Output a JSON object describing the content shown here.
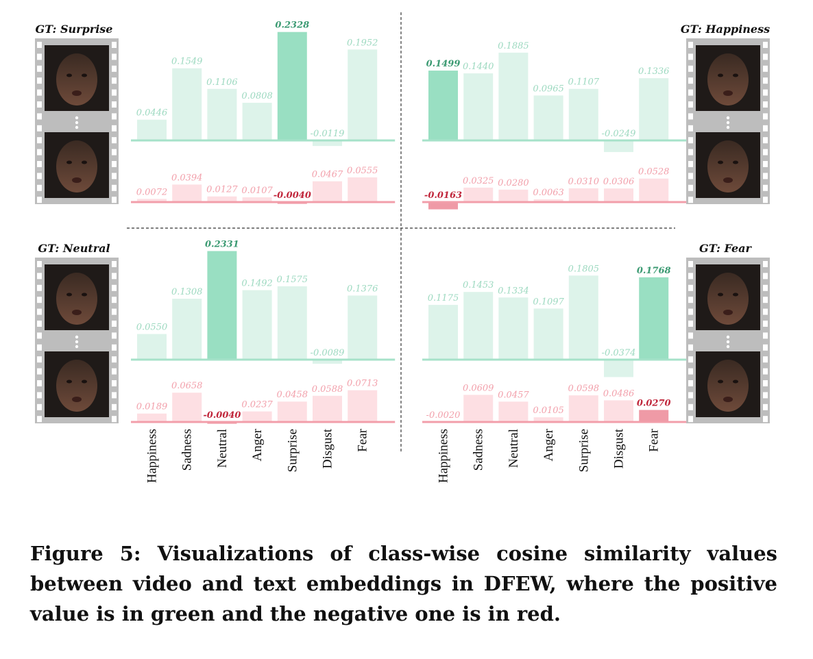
{
  "categories": [
    "Happiness",
    "Sadness",
    "Neutral",
    "Anger",
    "Surprise",
    "Disgust",
    "Fear"
  ],
  "colors": {
    "green_bar": "#ddf3ea",
    "green_highlight": "#99dfc2",
    "green_line": "#a6e2c9",
    "green_text": "#9dd9c0",
    "green_text_highlight": "#3b9a72",
    "red_bar": "#fddfe3",
    "red_highlight": "#ef9aa6",
    "red_line": "#f29eaa",
    "red_text": "#f2a0ab",
    "red_text_highlight": "#c0263b",
    "frame": "#bdbdbd",
    "divider": "#333333"
  },
  "panels": [
    {
      "gt_label": "GT: Surprise",
      "face_icon": "surprise-face-thumbnail",
      "frames": 2
    },
    {
      "gt_label": "GT: Happiness",
      "face_icon": "happiness-face-thumbnail",
      "frames": 2
    },
    {
      "gt_label": "GT: Neutral",
      "face_icon": "neutral-face-thumbnail",
      "frames": 2
    },
    {
      "gt_label": "GT: Fear",
      "face_icon": "fear-face-thumbnail",
      "frames": 2
    }
  ],
  "chart_data": [
    {
      "type": "bar",
      "title": "GT: Surprise",
      "categories": [
        "Happiness",
        "Sadness",
        "Neutral",
        "Anger",
        "Surprise",
        "Disgust",
        "Fear"
      ],
      "series": [
        {
          "values": [
            0.0446,
            0.1549,
            0.1106,
            0.0808,
            0.2328,
            -0.0119,
            0.1952
          ],
          "labels": [
            "0.0446",
            "0.1549",
            "0.1106",
            "0.0808",
            "0.2328",
            "-0.0119",
            "0.1952"
          ],
          "highlight": 4,
          "color": "green"
        },
        {
          "values": [
            0.0072,
            0.0394,
            0.0127,
            0.0107,
            -0.004,
            0.0467,
            0.0555
          ],
          "labels": [
            "0.0072",
            "0.0394",
            "0.0127",
            "0.0107",
            "-0.0040",
            "0.0467",
            "0.0555"
          ],
          "highlight": 4,
          "color": "red"
        }
      ]
    },
    {
      "type": "bar",
      "title": "GT: Happiness",
      "categories": [
        "Happiness",
        "Sadness",
        "Neutral",
        "Anger",
        "Surprise",
        "Disgust",
        "Fear"
      ],
      "series": [
        {
          "values": [
            0.1499,
            0.144,
            0.1885,
            0.0965,
            0.1107,
            -0.0249,
            0.1336
          ],
          "labels": [
            "0.1499",
            "0.1440",
            "0.1885",
            "0.0965",
            "0.1107",
            "-0.0249",
            "0.1336"
          ],
          "highlight": 0,
          "color": "green"
        },
        {
          "values": [
            -0.0163,
            0.0325,
            0.028,
            0.0063,
            0.031,
            0.0306,
            0.0528
          ],
          "labels": [
            "-0.0163",
            "0.0325",
            "0.0280",
            "0.0063",
            "0.0310",
            "0.0306",
            "0.0528"
          ],
          "highlight": 0,
          "color": "red"
        }
      ]
    },
    {
      "type": "bar",
      "title": "GT: Neutral",
      "categories": [
        "Happiness",
        "Sadness",
        "Neutral",
        "Anger",
        "Surprise",
        "Disgust",
        "Fear"
      ],
      "series": [
        {
          "values": [
            0.055,
            0.1308,
            0.2331,
            0.1492,
            0.1575,
            -0.0089,
            0.1376
          ],
          "labels": [
            "0.0550",
            "0.1308",
            "0.2331",
            "0.1492",
            "0.1575",
            "-0.0089",
            "0.1376"
          ],
          "highlight": 2,
          "color": "green"
        },
        {
          "values": [
            0.0189,
            0.0658,
            -0.004,
            0.0237,
            0.0458,
            0.0588,
            0.0713
          ],
          "labels": [
            "0.0189",
            "0.0658",
            "-0.0040",
            "0.0237",
            "0.0458",
            "0.0588",
            "0.0713"
          ],
          "highlight": 2,
          "color": "red"
        }
      ]
    },
    {
      "type": "bar",
      "title": "GT: Fear",
      "categories": [
        "Happiness",
        "Sadness",
        "Neutral",
        "Anger",
        "Surprise",
        "Disgust",
        "Fear"
      ],
      "series": [
        {
          "values": [
            0.1175,
            0.1453,
            0.1334,
            0.1097,
            0.1805,
            -0.0374,
            0.1768
          ],
          "labels": [
            "0.1175",
            "0.1453",
            "0.1334",
            "0.1097",
            "0.1805",
            "-0.0374",
            "0.1768"
          ],
          "highlight": 6,
          "color": "green"
        },
        {
          "values": [
            -0.002,
            0.0609,
            0.0457,
            0.0105,
            0.0598,
            0.0486,
            0.027
          ],
          "labels": [
            "-0.0020",
            "0.0609",
            "0.0457",
            "0.0105",
            "0.0598",
            "0.0486",
            "0.0270"
          ],
          "highlight": 6,
          "color": "red"
        }
      ]
    }
  ],
  "caption": "Figure 5: Visualizations of class-wise cosine similarity values between video and text embeddings in DFEW, where the positive value is in green and the negative one is in red."
}
